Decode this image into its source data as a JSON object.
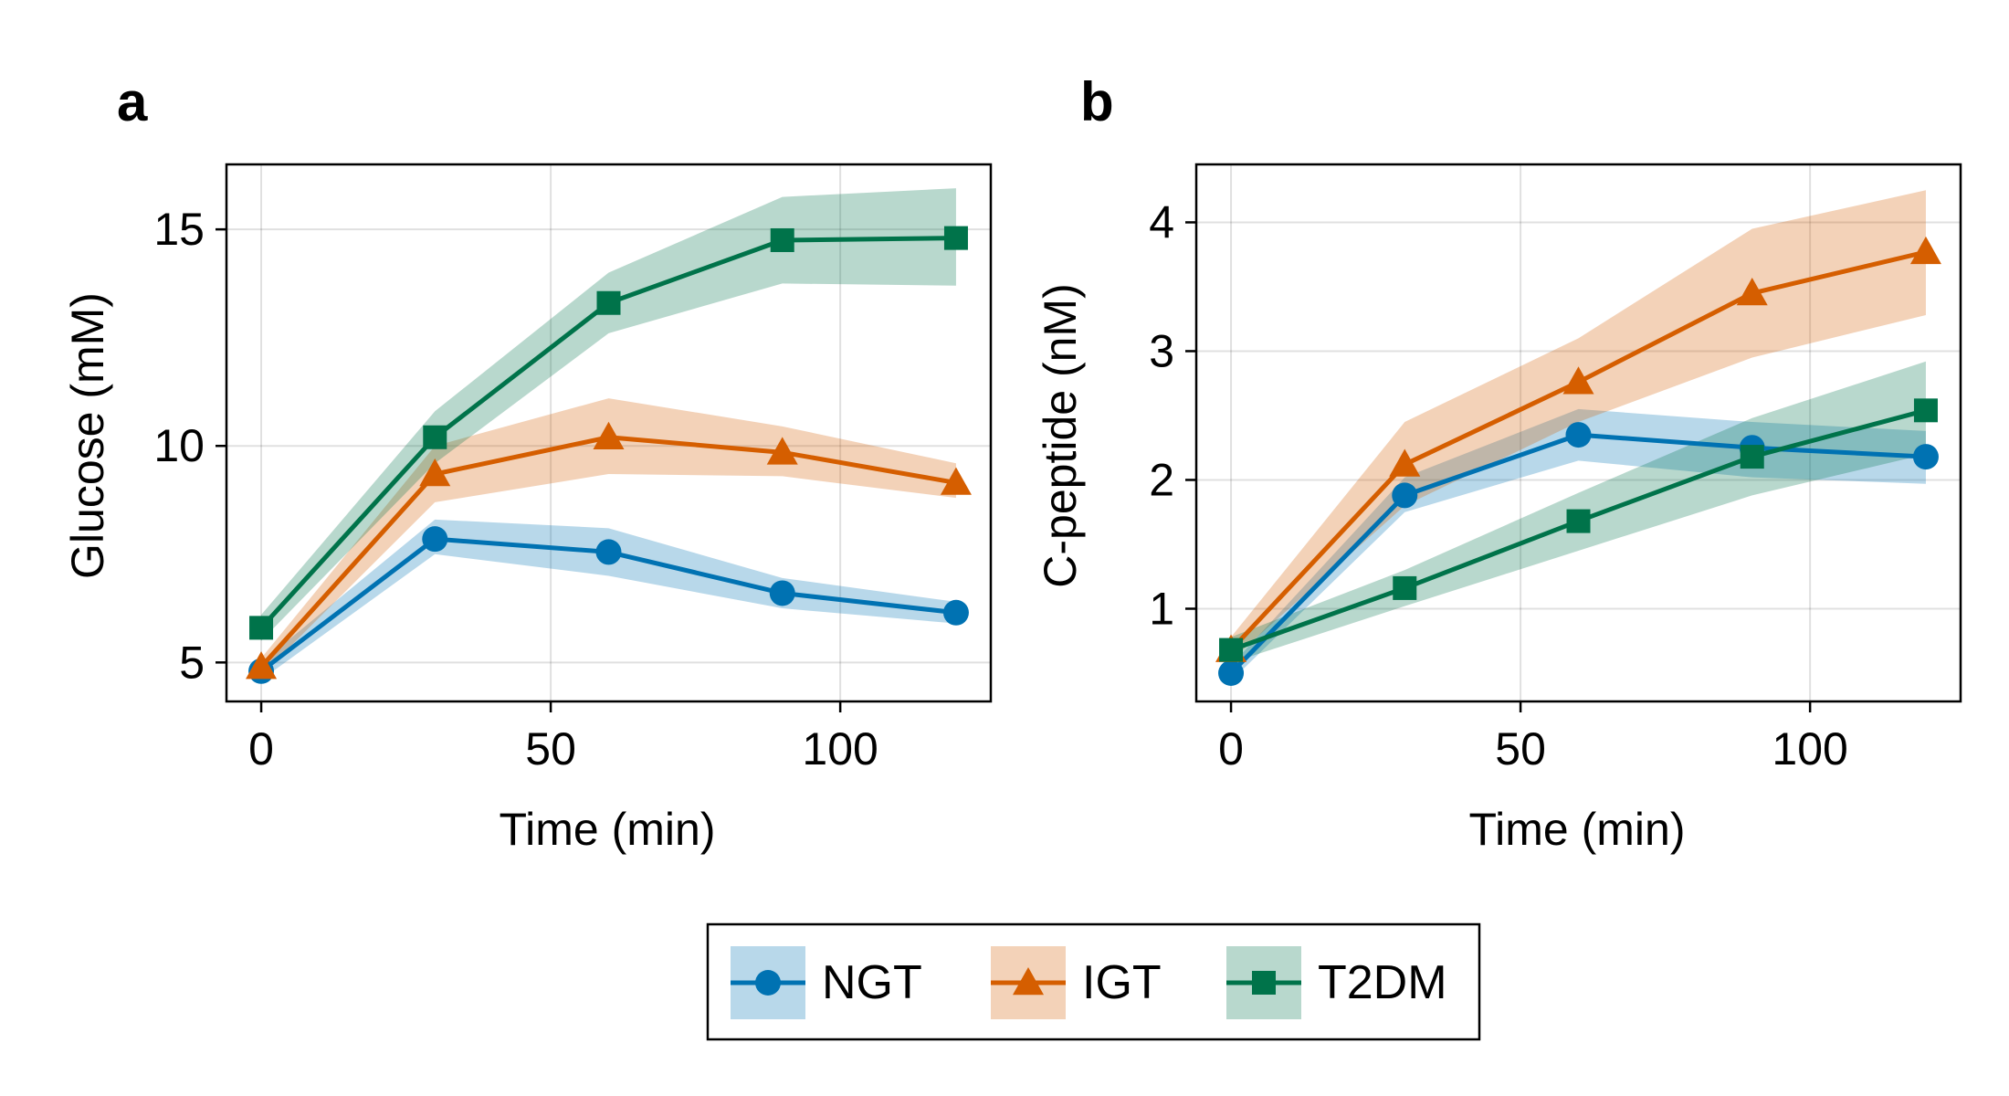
{
  "colors": {
    "NGT": "#0072b2",
    "IGT": "#d55e00",
    "T2DM": "#00734a"
  },
  "legend": {
    "items": [
      "NGT",
      "IGT",
      "T2DM"
    ],
    "placement": "bottom-center"
  },
  "chart_data": [
    {
      "type": "line",
      "panel_label": "a",
      "xlabel": "Time (min)",
      "ylabel": "Glucose (mM)",
      "xlim": [
        -6,
        126
      ],
      "ylim": [
        4.1,
        16.5
      ],
      "xticks": [
        0,
        50,
        100
      ],
      "yticks": [
        5,
        10,
        15
      ],
      "grid": true,
      "x": [
        0,
        30,
        60,
        90,
        120
      ],
      "series": [
        {
          "name": "NGT",
          "marker": "circle",
          "values": [
            4.8,
            7.85,
            7.55,
            6.6,
            6.15
          ],
          "lower": [
            4.6,
            7.5,
            7.0,
            6.25,
            5.9
          ],
          "upper": [
            5.0,
            8.3,
            8.1,
            6.95,
            6.4
          ]
        },
        {
          "name": "IGT",
          "marker": "triangle",
          "values": [
            4.9,
            9.35,
            10.2,
            9.85,
            9.15
          ],
          "lower": [
            4.7,
            8.7,
            9.35,
            9.3,
            8.8
          ],
          "upper": [
            5.1,
            10.0,
            11.1,
            10.45,
            9.6
          ]
        },
        {
          "name": "T2DM",
          "marker": "square",
          "values": [
            5.8,
            10.2,
            13.3,
            14.75,
            14.8
          ],
          "lower": [
            5.5,
            9.6,
            12.6,
            13.75,
            13.7
          ],
          "upper": [
            6.1,
            10.8,
            14.0,
            15.75,
            15.95
          ]
        }
      ]
    },
    {
      "type": "line",
      "panel_label": "b",
      "xlabel": "Time (min)",
      "ylabel": "C-peptide (nM)",
      "xlim": [
        -6,
        126
      ],
      "ylim": [
        0.28,
        4.45
      ],
      "xticks": [
        0,
        50,
        100
      ],
      "yticks": [
        1,
        2,
        3,
        4
      ],
      "grid": true,
      "x": [
        0,
        30,
        60,
        90,
        120
      ],
      "series": [
        {
          "name": "NGT",
          "marker": "circle",
          "values": [
            0.5,
            1.88,
            2.35,
            2.25,
            2.18
          ],
          "lower": [
            0.44,
            1.75,
            2.15,
            2.02,
            1.97
          ],
          "upper": [
            0.56,
            2.02,
            2.55,
            2.45,
            2.38
          ]
        },
        {
          "name": "IGT",
          "marker": "triangle",
          "values": [
            0.68,
            2.12,
            2.76,
            3.45,
            3.77
          ],
          "lower": [
            0.6,
            1.8,
            2.45,
            2.95,
            3.28
          ],
          "upper": [
            0.78,
            2.45,
            3.1,
            3.95,
            4.25
          ]
        },
        {
          "name": "T2DM",
          "marker": "square",
          "values": [
            0.68,
            1.16,
            1.68,
            2.18,
            2.54
          ],
          "lower": [
            0.58,
            1.02,
            1.45,
            1.88,
            2.2
          ],
          "upper": [
            0.78,
            1.3,
            1.9,
            2.48,
            2.92
          ]
        }
      ]
    }
  ]
}
